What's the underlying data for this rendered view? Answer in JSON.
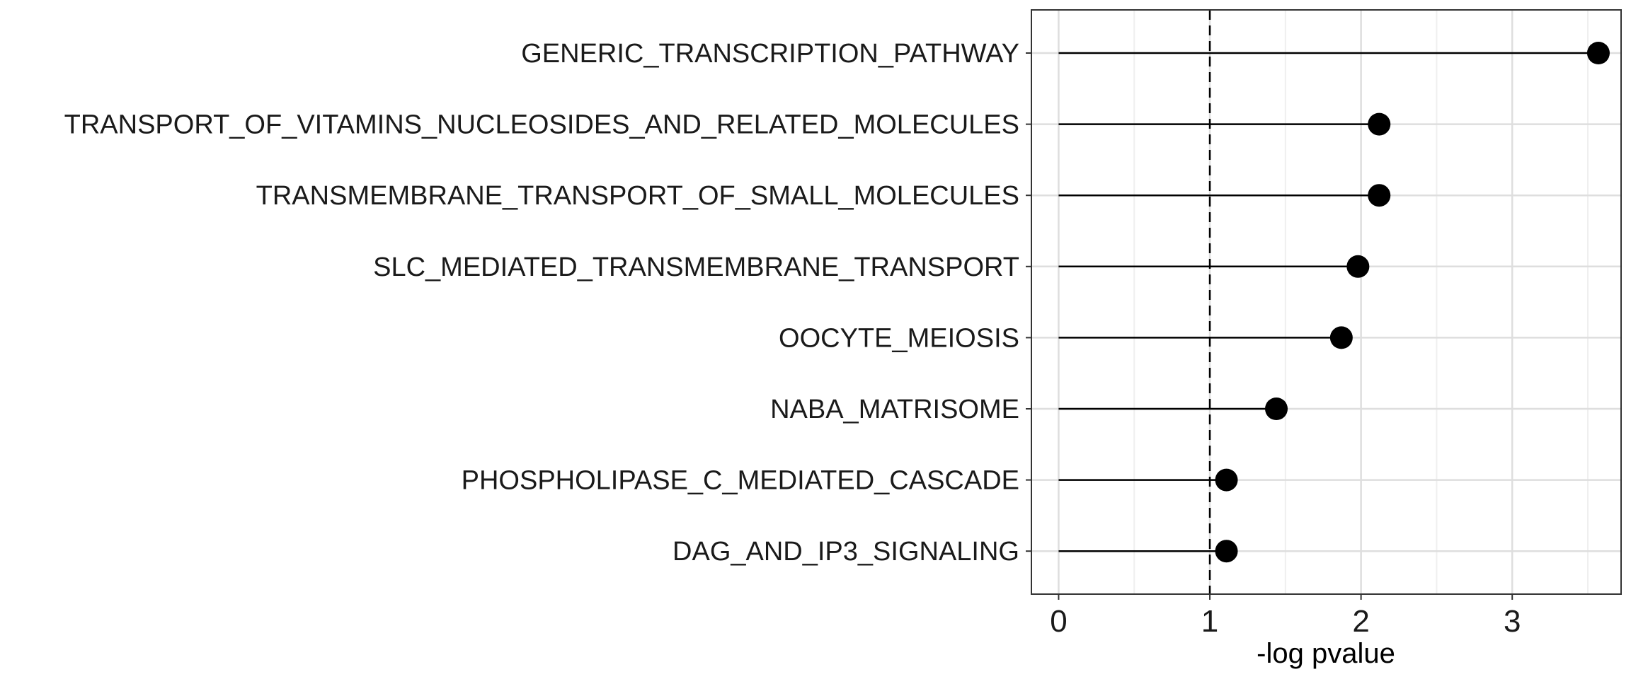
{
  "chart_data": {
    "type": "lollipop",
    "title": "",
    "xlabel": "-log pvalue",
    "ylabel": "",
    "xlim": [
      -0.18,
      3.72
    ],
    "xticks": [
      0,
      1,
      2,
      3
    ],
    "xtick_labels": [
      "0",
      "1",
      "2",
      "3"
    ],
    "grid": true,
    "legend": "none",
    "reference_line": {
      "x": 1,
      "style": "dashed"
    },
    "categories": [
      "GENERIC_TRANSCRIPTION_PATHWAY",
      "TRANSPORT_OF_VITAMINS_NUCLEOSIDES_AND_RELATED_MOLECULES",
      "TRANSMEMBRANE_TRANSPORT_OF_SMALL_MOLECULES",
      "SLC_MEDIATED_TRANSMEMBRANE_TRANSPORT",
      "OOCYTE_MEIOSIS",
      "NABA_MATRISOME",
      "PHOSPHOLIPASE_C_MEDIATED_CASCADE",
      "DAG_AND_IP3_SIGNALING"
    ],
    "values": [
      3.57,
      2.12,
      2.12,
      1.98,
      1.87,
      1.44,
      1.11,
      1.11
    ],
    "colors": {
      "point": "#000000",
      "stem": "#000000",
      "grid_major": "#dedede",
      "grid_minor": "#efefef",
      "panel_border": "#333333"
    }
  }
}
